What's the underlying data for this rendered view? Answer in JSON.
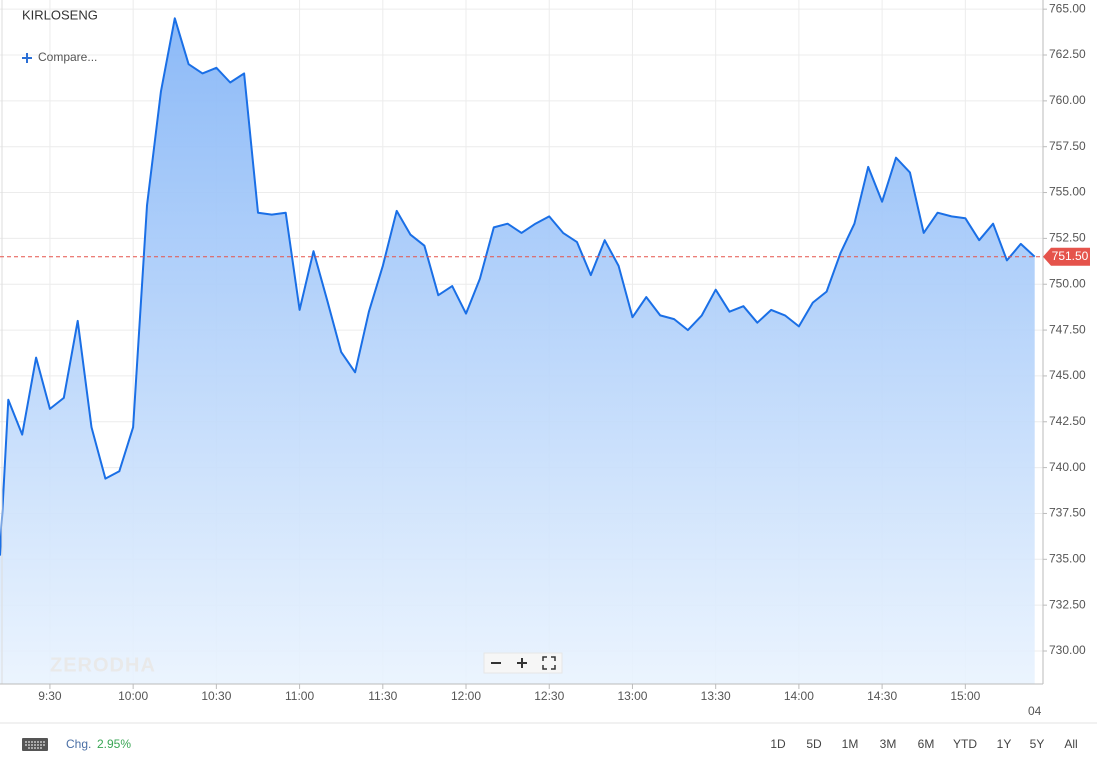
{
  "chart_data": {
    "type": "area",
    "title": "KIRLOSENG",
    "compare": "Compare...",
    "watermark": "ZERODHA",
    "color": "#1a6fe6",
    "x": [
      "9:12",
      "9:15",
      "9:20",
      "9:25",
      "9:30",
      "9:35",
      "9:40",
      "9:45",
      "9:50",
      "9:55",
      "10:00",
      "10:05",
      "10:10",
      "10:15",
      "10:20",
      "10:25",
      "10:30",
      "10:35",
      "10:40",
      "10:45",
      "10:50",
      "10:55",
      "11:00",
      "11:05",
      "11:10",
      "11:15",
      "11:20",
      "11:25",
      "11:30",
      "11:35",
      "11:40",
      "11:45",
      "11:50",
      "11:55",
      "12:00",
      "12:05",
      "12:10",
      "12:15",
      "12:20",
      "12:25",
      "12:30",
      "12:35",
      "12:40",
      "12:45",
      "12:50",
      "12:55",
      "13:00",
      "13:05",
      "13:10",
      "13:15",
      "13:20",
      "13:25",
      "13:30",
      "13:35",
      "13:40",
      "13:45",
      "13:50",
      "13:55",
      "14:00",
      "14:05",
      "14:10",
      "14:15",
      "14:20",
      "14:25",
      "14:30",
      "14:35",
      "14:40",
      "14:45",
      "14:50",
      "14:55",
      "15:00",
      "15:05",
      "15:10",
      "15:15",
      "15:20",
      "15:25"
    ],
    "values": [
      735.2,
      743.7,
      741.8,
      746.0,
      743.2,
      743.8,
      748.0,
      742.2,
      739.4,
      739.8,
      742.2,
      754.3,
      760.5,
      764.5,
      762.0,
      761.5,
      761.8,
      761.0,
      761.5,
      753.9,
      753.8,
      753.9,
      748.6,
      751.8,
      749.1,
      746.3,
      745.2,
      748.5,
      751.0,
      754.0,
      752.7,
      752.1,
      749.4,
      749.9,
      748.4,
      750.3,
      753.1,
      753.3,
      752.8,
      753.3,
      753.7,
      752.8,
      752.3,
      750.5,
      752.4,
      751.0,
      748.2,
      749.3,
      748.3,
      748.1,
      747.5,
      748.3,
      749.7,
      748.5,
      748.8,
      747.9,
      748.6,
      748.3,
      747.7,
      749.0,
      749.6,
      751.7,
      753.3,
      756.4,
      754.5,
      756.9,
      756.1,
      752.8,
      753.9,
      753.7,
      753.6,
      752.4,
      753.3,
      751.3,
      752.2,
      751.5
    ],
    "xlim": [
      "9:12",
      "15:28"
    ],
    "xticks": [
      "9:30",
      "10:00",
      "10:30",
      "11:00",
      "11:30",
      "12:00",
      "12:30",
      "13:00",
      "13:30",
      "14:00",
      "14:30",
      "15:00"
    ],
    "x_edge_label": "04",
    "ylim": [
      728.2,
      765.5
    ],
    "yticks": [
      {
        "value": 730,
        "label": "730.00"
      },
      {
        "value": 732.5,
        "label": "732.50"
      },
      {
        "value": 735,
        "label": "735.00"
      },
      {
        "value": 737.5,
        "label": "737.50"
      },
      {
        "value": 740,
        "label": "740.00"
      },
      {
        "value": 742.5,
        "label": "742.50"
      },
      {
        "value": 745,
        "label": "745.00"
      },
      {
        "value": 747.5,
        "label": "747.50"
      },
      {
        "value": 750,
        "label": "750.00"
      },
      {
        "value": 752.5,
        "label": "752.50"
      },
      {
        "value": 755,
        "label": "755.00"
      },
      {
        "value": 757.5,
        "label": "757.50"
      },
      {
        "value": 760,
        "label": "760.00"
      },
      {
        "value": 762.5,
        "label": "762.50"
      },
      {
        "value": 765,
        "label": "765.00"
      }
    ],
    "last_price": {
      "value": 751.5,
      "label": "751.50",
      "color": "#e5534b"
    },
    "grid": true,
    "change": {
      "label": "Chg.",
      "value": "2.95%"
    },
    "ranges": [
      "1D",
      "5D",
      "1M",
      "3M",
      "6M",
      "YTD",
      "1Y",
      "5Y",
      "All"
    ]
  }
}
